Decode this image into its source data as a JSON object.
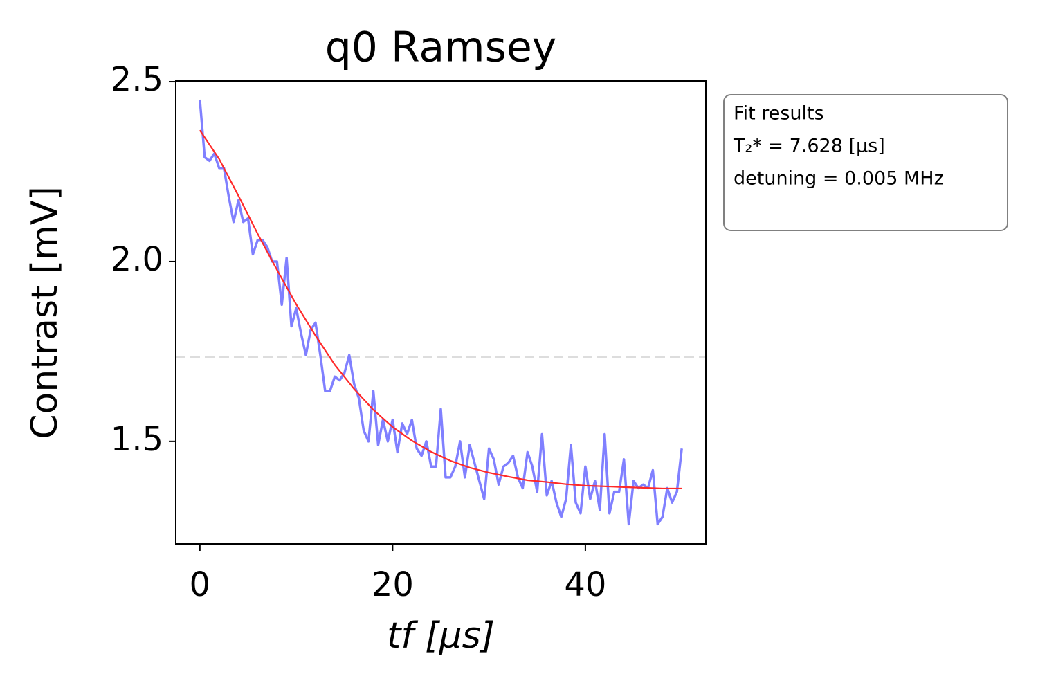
{
  "chart_data": {
    "type": "line",
    "title": "q0 Ramsey",
    "xlabel": "tf [μs]",
    "ylabel": "Contrast [mV]",
    "xlim": [
      -2.5,
      52.5
    ],
    "ylim": [
      1.215,
      2.502
    ],
    "xticks": [
      0,
      20,
      40
    ],
    "yticks": [
      1.5,
      {
        "value": 2.0,
        "label": "2.0"
      },
      2.5
    ],
    "hline": 1.735,
    "hline_color": "#dddddd",
    "textbox": [
      "Fit results",
      "T₂* = 7.628 [μs]",
      "detuning = 0.005 MHz"
    ],
    "series": [
      {
        "color": "#8080ff",
        "x": [
          0,
          0.5,
          1,
          1.5,
          2,
          2.5,
          3,
          3.5,
          4,
          4.5,
          5,
          5.5,
          6,
          6.5,
          7,
          7.5,
          8,
          8.5,
          9,
          9.5,
          10,
          10.5,
          11,
          11.5,
          12,
          12.5,
          13,
          13.5,
          14,
          14.5,
          15,
          15.5,
          16,
          16.5,
          17,
          17.5,
          18,
          18.5,
          19,
          19.5,
          20,
          20.5,
          21,
          21.5,
          22,
          22.5,
          23,
          23.5,
          24,
          24.5,
          25,
          25.5,
          26,
          26.5,
          27,
          27.5,
          28,
          28.5,
          29,
          29.5,
          30,
          30.5,
          31,
          31.5,
          32,
          32.5,
          33,
          33.5,
          34,
          34.5,
          35,
          35.5,
          36,
          36.5,
          37,
          37.5,
          38,
          38.5,
          39,
          39.5,
          40,
          40.5,
          41,
          41.5,
          42,
          42.5,
          43,
          43.5,
          44,
          44.5,
          45,
          45.5,
          46,
          46.5,
          47,
          47.5,
          48,
          48.5,
          49,
          49.5,
          50
        ],
        "values": [
          2.45,
          2.29,
          2.28,
          2.3,
          2.26,
          2.26,
          2.18,
          2.11,
          2.17,
          2.11,
          2.12,
          2.02,
          2.06,
          2.06,
          2.04,
          2.0,
          2.0,
          1.88,
          2.01,
          1.82,
          1.87,
          1.8,
          1.74,
          1.81,
          1.83,
          1.74,
          1.64,
          1.64,
          1.68,
          1.67,
          1.69,
          1.74,
          1.66,
          1.62,
          1.53,
          1.5,
          1.64,
          1.49,
          1.56,
          1.5,
          1.56,
          1.47,
          1.55,
          1.52,
          1.56,
          1.48,
          1.46,
          1.5,
          1.43,
          1.43,
          1.59,
          1.4,
          1.4,
          1.43,
          1.5,
          1.4,
          1.49,
          1.44,
          1.39,
          1.34,
          1.48,
          1.45,
          1.38,
          1.43,
          1.44,
          1.46,
          1.4,
          1.37,
          1.47,
          1.43,
          1.36,
          1.52,
          1.35,
          1.39,
          1.33,
          1.29,
          1.34,
          1.49,
          1.33,
          1.3,
          1.43,
          1.34,
          1.39,
          1.31,
          1.52,
          1.3,
          1.36,
          1.36,
          1.45,
          1.27,
          1.39,
          1.37,
          1.38,
          1.37,
          1.42,
          1.27,
          1.29,
          1.37,
          1.33,
          1.36,
          1.48
        ]
      },
      {
        "color": "#ff2a2a",
        "x": [
          0,
          2,
          4,
          6,
          8,
          10,
          12,
          14,
          16,
          18,
          20,
          22,
          24,
          26,
          28,
          30,
          32,
          34,
          36,
          38,
          40,
          42,
          44,
          46,
          48,
          50
        ],
        "values": [
          2.365,
          2.285,
          2.183,
          2.077,
          1.977,
          1.881,
          1.794,
          1.713,
          1.646,
          1.588,
          1.54,
          1.502,
          1.471,
          1.446,
          1.427,
          1.413,
          1.402,
          1.392,
          1.387,
          1.381,
          1.377,
          1.375,
          1.373,
          1.371,
          1.369,
          1.369
        ]
      }
    ]
  }
}
